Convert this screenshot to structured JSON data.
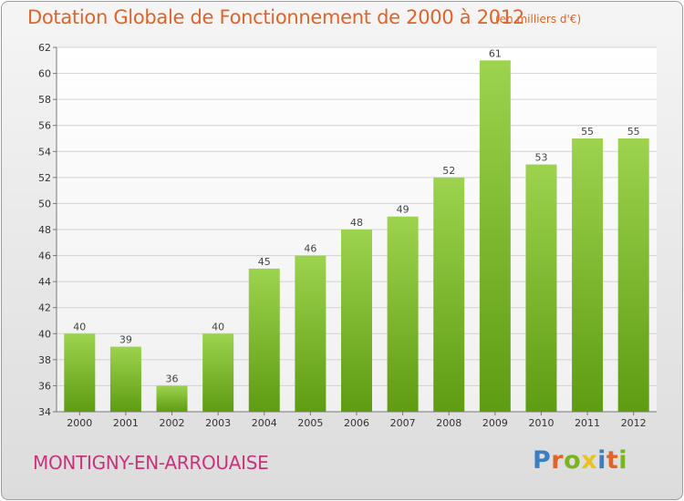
{
  "header": {
    "title": "Dotation Globale de Fonctionnement de 2000 à 2012",
    "unit": "(en milliers d'€)"
  },
  "footer": {
    "place": "MONTIGNY-EN-ARROUAISE",
    "logo": "Proxiti",
    "logo_colors": [
      "#3a7fc4",
      "#e06428",
      "#7ab51d",
      "#e8c21f",
      "#3a7fc4",
      "#e06428",
      "#7ab51d"
    ]
  },
  "colors": {
    "bar_top": "#9dd34e",
    "bar_bottom": "#5e9c12",
    "grid": "#d2d2d2",
    "title": "#e06428",
    "place": "#c9337a"
  },
  "chart_data": {
    "type": "bar",
    "title": "Dotation Globale de Fonctionnement de 2000 à 2012",
    "subtitle": "(en milliers d'€)",
    "xlabel": "",
    "ylabel": "",
    "categories": [
      "2000",
      "2001",
      "2002",
      "2003",
      "2004",
      "2005",
      "2006",
      "2007",
      "2008",
      "2009",
      "2010",
      "2011",
      "2012"
    ],
    "values": [
      40,
      39,
      36,
      40,
      45,
      46,
      48,
      49,
      52,
      61,
      53,
      55,
      55
    ],
    "ylim": [
      34,
      62
    ],
    "yticks": [
      34,
      36,
      38,
      40,
      42,
      44,
      46,
      48,
      50,
      52,
      54,
      56,
      58,
      60,
      62
    ],
    "grid": true,
    "data_labels": true
  }
}
